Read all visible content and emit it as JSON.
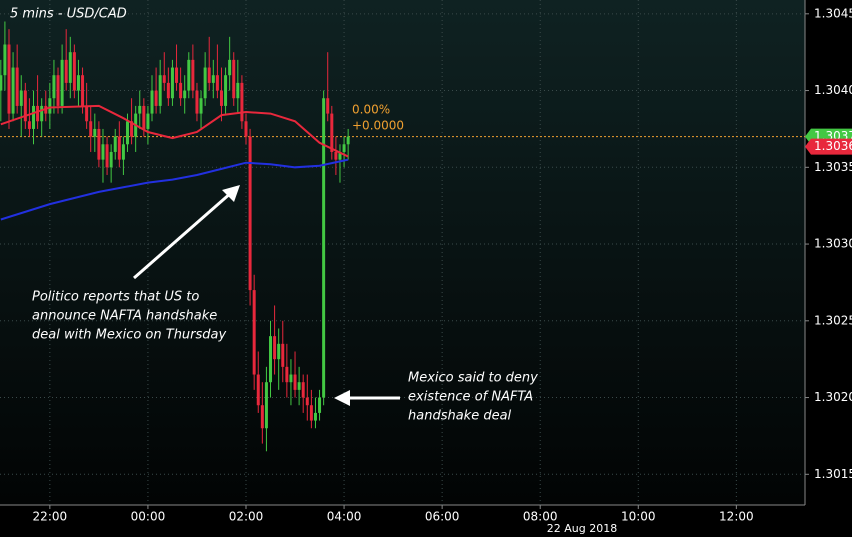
{
  "chart_data": {
    "type": "candlestick",
    "title": "5 mins - USD/CAD",
    "date_label": "22 Aug 2018",
    "x": [
      "21:00",
      "21:05",
      "21:10",
      "21:15",
      "21:20",
      "21:25",
      "21:30",
      "21:35",
      "21:40",
      "21:45",
      "21:50",
      "21:55",
      "22:00",
      "22:05",
      "22:10",
      "22:15",
      "22:20",
      "22:25",
      "22:30",
      "22:35",
      "22:40",
      "22:45",
      "22:50",
      "22:55",
      "23:00",
      "23:05",
      "23:10",
      "23:15",
      "23:20",
      "23:25",
      "23:30",
      "23:35",
      "23:40",
      "23:45",
      "23:50",
      "23:55",
      "00:00",
      "00:05",
      "00:10",
      "00:15",
      "00:20",
      "00:25",
      "00:30",
      "00:35",
      "00:40",
      "00:45",
      "00:50",
      "00:55",
      "01:00",
      "01:05",
      "01:10",
      "01:15",
      "01:20",
      "01:25",
      "01:30",
      "01:35",
      "01:40",
      "01:45",
      "01:50",
      "01:55",
      "02:00",
      "02:05",
      "02:10",
      "02:15",
      "02:20",
      "02:25",
      "02:30",
      "02:35",
      "02:40",
      "02:45",
      "02:50",
      "02:55",
      "03:00",
      "03:05",
      "03:10",
      "03:15",
      "03:20",
      "03:25",
      "03:30",
      "03:35",
      "03:40",
      "03:45",
      "03:50",
      "03:55",
      "04:00",
      "04:05"
    ],
    "ohlc": [
      [
        1.304,
        1.3042,
        1.3038,
        1.3041
      ],
      [
        1.3041,
        1.30445,
        1.304,
        1.3043
      ],
      [
        1.3043,
        1.3044,
        1.30375,
        1.30385
      ],
      [
        1.30385,
        1.30425,
        1.3038,
        1.30415
      ],
      [
        1.30415,
        1.3043,
        1.30385,
        1.3039
      ],
      [
        1.3039,
        1.3041,
        1.3037,
        1.304
      ],
      [
        1.304,
        1.30405,
        1.30375,
        1.3038
      ],
      [
        1.3038,
        1.30395,
        1.3037,
        1.30375
      ],
      [
        1.30375,
        1.304,
        1.30365,
        1.3039
      ],
      [
        1.3039,
        1.3041,
        1.30375,
        1.3038
      ],
      [
        1.3038,
        1.30395,
        1.3037,
        1.3039
      ],
      [
        1.3039,
        1.304,
        1.3038,
        1.30385
      ],
      [
        1.30385,
        1.30405,
        1.30375,
        1.30395
      ],
      [
        1.30395,
        1.3042,
        1.30385,
        1.3041
      ],
      [
        1.3041,
        1.30415,
        1.30385,
        1.3039
      ],
      [
        1.3039,
        1.3043,
        1.30385,
        1.3042
      ],
      [
        1.3042,
        1.3044,
        1.304,
        1.30405
      ],
      [
        1.30405,
        1.30435,
        1.30395,
        1.30425
      ],
      [
        1.30425,
        1.3043,
        1.30395,
        1.304
      ],
      [
        1.304,
        1.3042,
        1.3039,
        1.3041
      ],
      [
        1.3041,
        1.30415,
        1.30385,
        1.3039
      ],
      [
        1.3039,
        1.30405,
        1.30375,
        1.3038
      ],
      [
        1.3038,
        1.3039,
        1.3036,
        1.3037
      ],
      [
        1.3037,
        1.30385,
        1.3036,
        1.30375
      ],
      [
        1.30375,
        1.3038,
        1.3035,
        1.30355
      ],
      [
        1.30355,
        1.30375,
        1.3034,
        1.30365
      ],
      [
        1.30365,
        1.3037,
        1.30345,
        1.3035
      ],
      [
        1.3035,
        1.30365,
        1.3034,
        1.3036
      ],
      [
        1.3036,
        1.30375,
        1.30355,
        1.3037
      ],
      [
        1.3037,
        1.3038,
        1.3035,
        1.30355
      ],
      [
        1.30355,
        1.3037,
        1.30345,
        1.30365
      ],
      [
        1.30365,
        1.30385,
        1.3036,
        1.3038
      ],
      [
        1.3038,
        1.30395,
        1.30365,
        1.3037
      ],
      [
        1.3037,
        1.3039,
        1.3036,
        1.30385
      ],
      [
        1.30385,
        1.304,
        1.30375,
        1.3039
      ],
      [
        1.3039,
        1.30395,
        1.3037,
        1.30375
      ],
      [
        1.30375,
        1.3039,
        1.30365,
        1.30385
      ],
      [
        1.30385,
        1.3041,
        1.3038,
        1.304
      ],
      [
        1.304,
        1.30415,
        1.30385,
        1.3039
      ],
      [
        1.3039,
        1.3042,
        1.30385,
        1.3041
      ],
      [
        1.3041,
        1.30425,
        1.304,
        1.30405
      ],
      [
        1.30405,
        1.30415,
        1.3039,
        1.30395
      ],
      [
        1.30395,
        1.3042,
        1.3039,
        1.30415
      ],
      [
        1.30415,
        1.3043,
        1.304,
        1.30405
      ],
      [
        1.30405,
        1.30415,
        1.3039,
        1.30395
      ],
      [
        1.30395,
        1.3041,
        1.30385,
        1.304
      ],
      [
        1.304,
        1.30425,
        1.30395,
        1.3042
      ],
      [
        1.3042,
        1.3043,
        1.30395,
        1.304
      ],
      [
        1.304,
        1.30405,
        1.3038,
        1.30385
      ],
      [
        1.30385,
        1.304,
        1.30375,
        1.30395
      ],
      [
        1.30395,
        1.30425,
        1.3039,
        1.30415
      ],
      [
        1.30415,
        1.30435,
        1.304,
        1.30405
      ],
      [
        1.30405,
        1.3042,
        1.30395,
        1.3041
      ],
      [
        1.3041,
        1.3043,
        1.30395,
        1.304
      ],
      [
        1.304,
        1.30415,
        1.3038,
        1.3039
      ],
      [
        1.3039,
        1.30415,
        1.30385,
        1.3041
      ],
      [
        1.3041,
        1.30435,
        1.304,
        1.3042
      ],
      [
        1.3042,
        1.30425,
        1.3039,
        1.30395
      ],
      [
        1.30395,
        1.3042,
        1.30385,
        1.30405
      ],
      [
        1.30405,
        1.3041,
        1.30375,
        1.3038
      ],
      [
        1.3038,
        1.30385,
        1.30365,
        1.3037
      ],
      [
        1.3037,
        1.30375,
        1.3026,
        1.3027
      ],
      [
        1.3027,
        1.3028,
        1.30205,
        1.30215
      ],
      [
        1.30215,
        1.3023,
        1.3019,
        1.30195
      ],
      [
        1.30195,
        1.3021,
        1.3017,
        1.3018
      ],
      [
        1.3018,
        1.3022,
        1.30165,
        1.3021
      ],
      [
        1.3021,
        1.3025,
        1.302,
        1.3024
      ],
      [
        1.3024,
        1.3026,
        1.30215,
        1.30225
      ],
      [
        1.30225,
        1.30245,
        1.30205,
        1.30235
      ],
      [
        1.30235,
        1.3025,
        1.3021,
        1.3022
      ],
      [
        1.3022,
        1.30235,
        1.302,
        1.3021
      ],
      [
        1.3021,
        1.30225,
        1.30195,
        1.30215
      ],
      [
        1.30215,
        1.3023,
        1.302,
        1.30205
      ],
      [
        1.30205,
        1.3022,
        1.30195,
        1.3021
      ],
      [
        1.3021,
        1.30215,
        1.3019,
        1.302
      ],
      [
        1.302,
        1.30215,
        1.30185,
        1.30195
      ],
      [
        1.30195,
        1.30205,
        1.3018,
        1.30185
      ],
      [
        1.30185,
        1.302,
        1.3018,
        1.3019
      ],
      [
        1.3019,
        1.30205,
        1.30185,
        1.302
      ],
      [
        1.302,
        1.304,
        1.30195,
        1.30395
      ],
      [
        1.30395,
        1.30425,
        1.3038,
        1.30385
      ],
      [
        1.30385,
        1.3039,
        1.30355,
        1.3036
      ],
      [
        1.3036,
        1.3037,
        1.30345,
        1.30355
      ],
      [
        1.30355,
        1.30365,
        1.3034,
        1.3036
      ],
      [
        1.3036,
        1.3037,
        1.3035,
        1.30365
      ],
      [
        1.30365,
        1.30375,
        1.30355,
        1.3037
      ]
    ],
    "up_color": "#43c843",
    "down_color": "#e8283c",
    "line_x": [
      "21:00",
      "22:00",
      "23:00",
      "23:30",
      "00:00",
      "00:30",
      "01:00",
      "01:30",
      "02:00",
      "02:30",
      "03:00",
      "03:30",
      "04:05"
    ],
    "lines": [
      {
        "color": "#e8283c",
        "values": [
          1.30378,
          1.30389,
          1.3039,
          1.30382,
          1.30373,
          1.30369,
          1.30373,
          1.30384,
          1.30386,
          1.30385,
          1.3038,
          1.30366,
          1.30357
        ]
      },
      {
        "color": "#2230e0",
        "values": [
          1.30316,
          1.30326,
          1.30334,
          1.30337,
          1.3034,
          1.30342,
          1.30345,
          1.30349,
          1.30353,
          1.30352,
          1.3035,
          1.30351,
          1.30355
        ]
      }
    ],
    "price_line": {
      "value": 1.3037,
      "color": "#f0a030"
    },
    "price_markers": [
      {
        "value": 1.3037,
        "color": "#43c843"
      },
      {
        "value": 1.3036,
        "color": "#e8283c"
      }
    ],
    "change_labels": [
      "0.00%",
      "+0.0000"
    ],
    "xlim": [
      "20:59",
      "13:24"
    ],
    "xticks": [
      "22:00",
      "00:00",
      "02:00",
      "04:00",
      "06:00",
      "08:00",
      "10:00",
      "12:00"
    ],
    "ylim": [
      1.3013,
      1.30459
    ],
    "yticks": [
      1.3045,
      {
        "value": 1.304,
        "label": "1.3040"
      },
      1.3035,
      {
        "value": 1.303,
        "label": "1.3030"
      },
      1.3025,
      {
        "value": 1.302,
        "label": "1.3020"
      },
      1.3015
    ],
    "grid": true,
    "annotations": [
      {
        "lines": [
          "Politico reports that US to",
          "announce NAFTA handshake",
          "deal with Mexico on Thursday"
        ]
      },
      {
        "lines": [
          "Mexico said to deny",
          "existence of NAFTA",
          "handshake deal"
        ]
      }
    ]
  }
}
